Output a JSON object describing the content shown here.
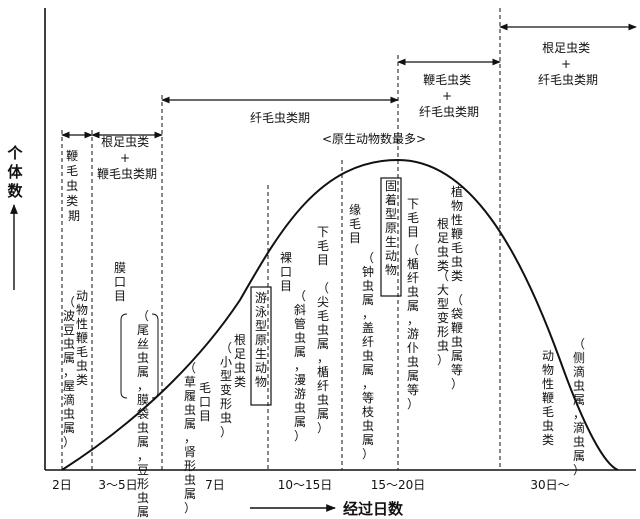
{
  "axes": {
    "y_label": "个体数",
    "x_label": "经过日数",
    "x_ticks": [
      "2日",
      "3～5日",
      "7日",
      "10～15日",
      "15～20日",
      "30日～"
    ]
  },
  "periods": [
    {
      "label_lines": [
        "鞭",
        "毛",
        "虫",
        "类",
        "期"
      ]
    },
    {
      "label_lines": [
        "根足虫类",
        "+",
        "鞭毛虫类期"
      ]
    },
    {
      "label_lines": [
        "纤毛虫类期"
      ]
    },
    {
      "label_lines": [
        "鞭毛虫类",
        "+",
        "纤毛虫类期"
      ]
    },
    {
      "label_lines": [
        "根足虫类",
        "+",
        "纤毛虫类期"
      ]
    }
  ],
  "peak_note": "<原生动物数最多>",
  "columns": [
    [
      "动物性鞭毛虫类",
      "（波豆虫属，屋滴虫属）"
    ],
    [
      "膜口目",
      "（尾丝虫属，膜袋虫属，豆形虫属）"
    ],
    [
      "毛口目",
      "（草履虫属，肾形虫属）"
    ],
    [
      "根足虫类",
      "（小型变形虫）"
    ],
    [
      "游泳型原生动物"
    ],
    [
      "裸口目",
      "（斜管虫属，漫游虫属）"
    ],
    [
      "下毛目",
      "（尖毛虫属，楯纤虫属）"
    ],
    [
      "缘毛目",
      "（钟虫属，盖纤虫属，等枝虫属）"
    ],
    [
      "固着型原生动物"
    ],
    [
      "下毛目",
      "（楯纤虫属，游仆虫属等）"
    ],
    [
      "根足虫类",
      "（大型变形虫）"
    ],
    [
      "植物性鞭毛虫类",
      "（袋鞭虫属等）"
    ],
    [
      "动物性鞭毛虫类"
    ],
    [
      "（侧滴虫属，滴虫属）"
    ]
  ]
}
